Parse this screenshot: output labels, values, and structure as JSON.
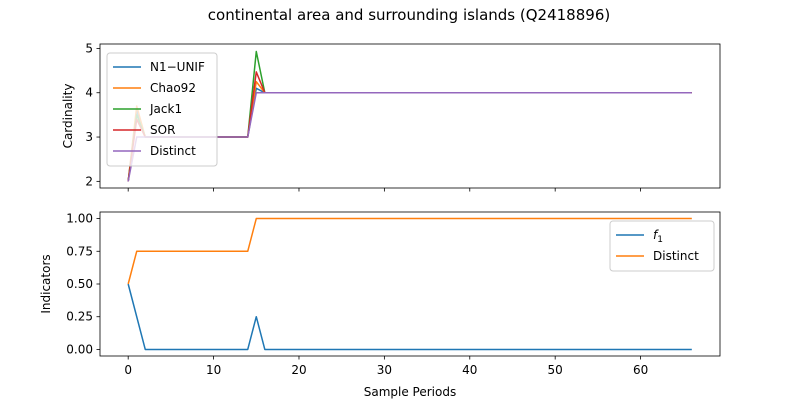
{
  "figure_title": "continental area and surrounding islands (Q2418896)",
  "colors": {
    "blue": "#1f77b4",
    "orange": "#ff7f0e",
    "green": "#2ca02c",
    "red": "#d62728",
    "purple": "#9467bd"
  },
  "chart_data": [
    {
      "type": "line",
      "ylabel": "Cardinality",
      "xlabel": "",
      "xlim": [
        -3.3,
        69.3
      ],
      "ylim": [
        1.85,
        5.1
      ],
      "yticks": [
        2,
        3,
        4,
        5
      ],
      "xticks": [
        0,
        10,
        20,
        30,
        40,
        50,
        60
      ],
      "show_xtick_labels": false,
      "legend_position": "top-left",
      "series": [
        {
          "name": "N1−UNIF",
          "color": "#1f77b4",
          "x": [
            0,
            1,
            2,
            14,
            15,
            16,
            66
          ],
          "y": [
            2,
            3.6,
            3,
            3,
            4.1,
            4,
            4
          ]
        },
        {
          "name": "Chao92",
          "color": "#ff7f0e",
          "x": [
            0,
            1,
            2,
            14,
            15,
            16,
            66
          ],
          "y": [
            2,
            3.7,
            3,
            3,
            4.25,
            4,
            4
          ]
        },
        {
          "name": "Jack1",
          "color": "#2ca02c",
          "x": [
            0,
            1,
            2,
            14,
            15,
            16,
            66
          ],
          "y": [
            2,
            3.5,
            3,
            3,
            4.93,
            4,
            4
          ]
        },
        {
          "name": "SOR",
          "color": "#d62728",
          "x": [
            0,
            1,
            2,
            14,
            15,
            16,
            66
          ],
          "y": [
            2,
            3.4,
            3,
            3,
            4.47,
            4,
            4
          ]
        },
        {
          "name": "Distinct",
          "color": "#9467bd",
          "x": [
            0,
            1,
            2,
            14,
            15,
            16,
            66
          ],
          "y": [
            2,
            3,
            3,
            3,
            4,
            4,
            4
          ]
        }
      ]
    },
    {
      "type": "line",
      "ylabel": "Indicators",
      "xlabel": "Sample Periods",
      "xlim": [
        -3.3,
        69.3
      ],
      "ylim": [
        -0.05,
        1.05
      ],
      "yticks": [
        0.0,
        0.25,
        0.5,
        0.75,
        1.0
      ],
      "ytick_labels": [
        "0.00",
        "0.25",
        "0.50",
        "0.75",
        "1.00"
      ],
      "xticks": [
        0,
        10,
        20,
        30,
        40,
        50,
        60
      ],
      "show_xtick_labels": true,
      "legend_position": "top-right",
      "series": [
        {
          "name": "f",
          "subscript": "1",
          "color": "#1f77b4",
          "x": [
            0,
            2,
            14,
            15,
            16,
            66
          ],
          "y": [
            0.5,
            0,
            0,
            0.25,
            0,
            0
          ]
        },
        {
          "name": "Distinct",
          "color": "#ff7f0e",
          "x": [
            0,
            1,
            14,
            15,
            66
          ],
          "y": [
            0.5,
            0.75,
            0.75,
            1.0,
            1.0
          ]
        }
      ]
    }
  ]
}
